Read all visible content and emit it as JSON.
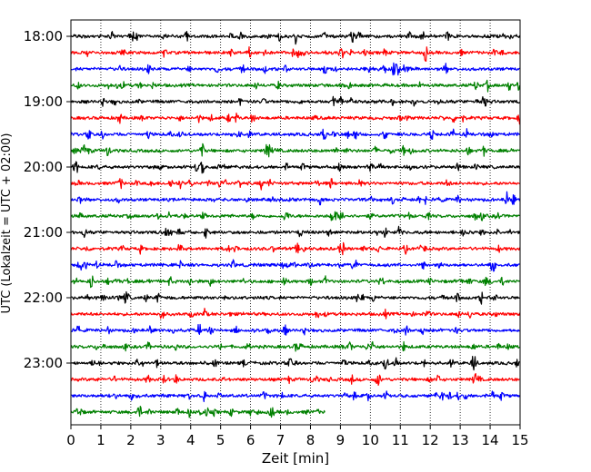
{
  "chart_data": {
    "type": "line",
    "title": "",
    "xlabel": "Zeit  [min]",
    "ylabel": "UTC (Lokalzeit = UTC + 02:00)",
    "xlim": [
      0,
      15
    ],
    "x_ticks": [
      "0",
      "1",
      "2",
      "3",
      "4",
      "5",
      "6",
      "7",
      "8",
      "9",
      "10",
      "11",
      "12",
      "13",
      "14",
      "15"
    ],
    "y_tick_labels": [
      "18:00",
      "19:00",
      "20:00",
      "21:00",
      "22:00",
      "23:00"
    ],
    "grid": {
      "x": true,
      "y": false,
      "style": "dotted"
    },
    "trace_interval_minutes": 15,
    "trace_colors": [
      "#000000",
      "#ff0000",
      "#0000ff",
      "#008000"
    ],
    "traces": [
      {
        "start": "18:00",
        "duration_min": 15,
        "color": "#000000"
      },
      {
        "start": "18:15",
        "duration_min": 15,
        "color": "#ff0000"
      },
      {
        "start": "18:30",
        "duration_min": 15,
        "color": "#0000ff"
      },
      {
        "start": "18:45",
        "duration_min": 15,
        "color": "#008000"
      },
      {
        "start": "19:00",
        "duration_min": 15,
        "color": "#000000"
      },
      {
        "start": "19:15",
        "duration_min": 15,
        "color": "#ff0000"
      },
      {
        "start": "19:30",
        "duration_min": 15,
        "color": "#0000ff"
      },
      {
        "start": "19:45",
        "duration_min": 15,
        "color": "#008000"
      },
      {
        "start": "20:00",
        "duration_min": 15,
        "color": "#000000"
      },
      {
        "start": "20:15",
        "duration_min": 15,
        "color": "#ff0000"
      },
      {
        "start": "20:30",
        "duration_min": 15,
        "color": "#0000ff"
      },
      {
        "start": "20:45",
        "duration_min": 15,
        "color": "#008000"
      },
      {
        "start": "21:00",
        "duration_min": 15,
        "color": "#000000"
      },
      {
        "start": "21:15",
        "duration_min": 15,
        "color": "#ff0000"
      },
      {
        "start": "21:30",
        "duration_min": 15,
        "color": "#0000ff"
      },
      {
        "start": "21:45",
        "duration_min": 15,
        "color": "#008000"
      },
      {
        "start": "22:00",
        "duration_min": 15,
        "color": "#000000"
      },
      {
        "start": "22:15",
        "duration_min": 15,
        "color": "#ff0000"
      },
      {
        "start": "22:30",
        "duration_min": 15,
        "color": "#0000ff"
      },
      {
        "start": "22:45",
        "duration_min": 15,
        "color": "#008000"
      },
      {
        "start": "23:00",
        "duration_min": 15,
        "color": "#000000"
      },
      {
        "start": "23:15",
        "duration_min": 15,
        "color": "#ff0000"
      },
      {
        "start": "23:30",
        "duration_min": 15,
        "color": "#0000ff"
      },
      {
        "start": "23:45",
        "duration_min": 8.5,
        "color": "#008000"
      }
    ]
  }
}
